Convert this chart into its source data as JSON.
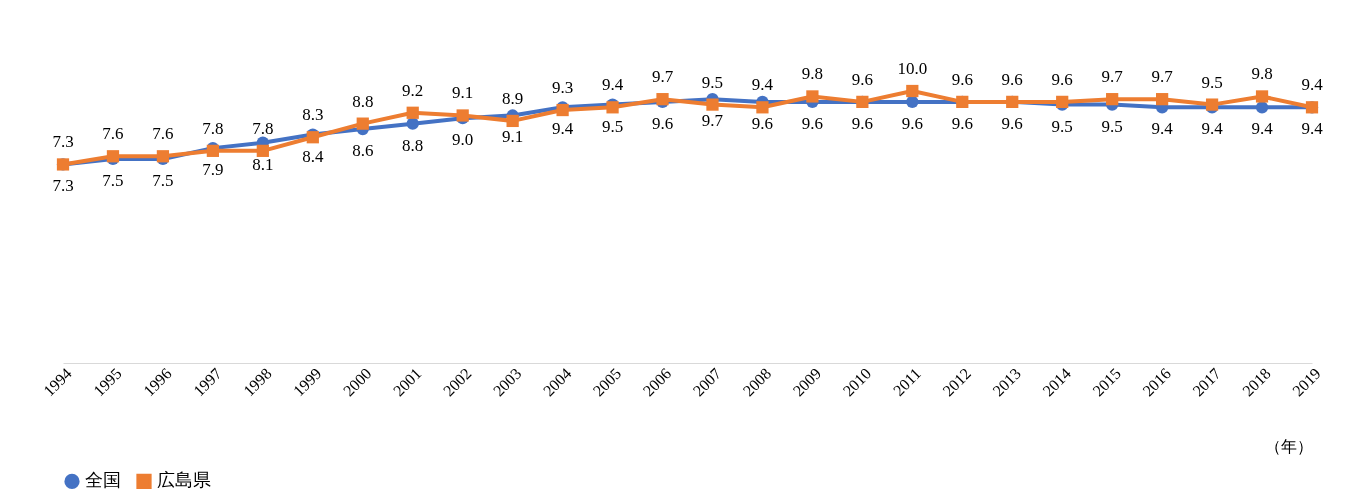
{
  "chart_data": {
    "type": "line",
    "xlabel": "（年）",
    "categories": [
      "1994",
      "1995",
      "1996",
      "1997",
      "1998",
      "1999",
      "2000",
      "2001",
      "2002",
      "2003",
      "2004",
      "2005",
      "2006",
      "2007",
      "2008",
      "2009",
      "2010",
      "2011",
      "2012",
      "2013",
      "2014",
      "2015",
      "2016",
      "2017",
      "2018",
      "2019"
    ],
    "series": [
      {
        "name": "全国",
        "color": "#4472c4",
        "marker": "circle",
        "value_labels": [
          "7.3",
          "7.5",
          "7.5",
          "7.9",
          "8.1",
          "8.4",
          "8.6",
          "8.8",
          "9.0",
          "9.1",
          "9.4",
          "9.5",
          "9.6",
          "9.7",
          "9.6",
          "9.6",
          "9.6",
          "9.6",
          "9.6",
          "9.6",
          "9.5",
          "9.5",
          "9.4",
          "9.4",
          "9.4",
          "9.4"
        ],
        "values": [
          7.3,
          7.5,
          7.5,
          7.9,
          8.1,
          8.4,
          8.6,
          8.8,
          9.0,
          9.1,
          9.4,
          9.5,
          9.6,
          9.7,
          9.6,
          9.6,
          9.6,
          9.6,
          9.6,
          9.6,
          9.5,
          9.5,
          9.4,
          9.4,
          9.4,
          9.4
        ]
      },
      {
        "name": "広島県",
        "color": "#ed7d31",
        "marker": "square",
        "value_labels": [
          "7.3",
          "7.6",
          "7.6",
          "7.8",
          "7.8",
          "8.3",
          "8.8",
          "9.2",
          "9.1",
          "8.9",
          "9.3",
          "9.4",
          "9.7",
          "9.5",
          "9.4",
          "9.8",
          "9.6",
          "10.0",
          "9.6",
          "9.6",
          "9.6",
          "9.7",
          "9.7",
          "9.5",
          "9.8",
          "9.4"
        ],
        "values": [
          7.3,
          7.6,
          7.6,
          7.8,
          7.8,
          8.3,
          8.8,
          9.2,
          9.1,
          8.9,
          9.3,
          9.4,
          9.7,
          9.5,
          9.4,
          9.8,
          9.6,
          10.0,
          9.6,
          9.6,
          9.6,
          9.7,
          9.7,
          9.5,
          9.8,
          9.4
        ]
      }
    ],
    "legend": "bottom",
    "grid": false,
    "tick_labels": "x",
    "line_style": "solid"
  }
}
